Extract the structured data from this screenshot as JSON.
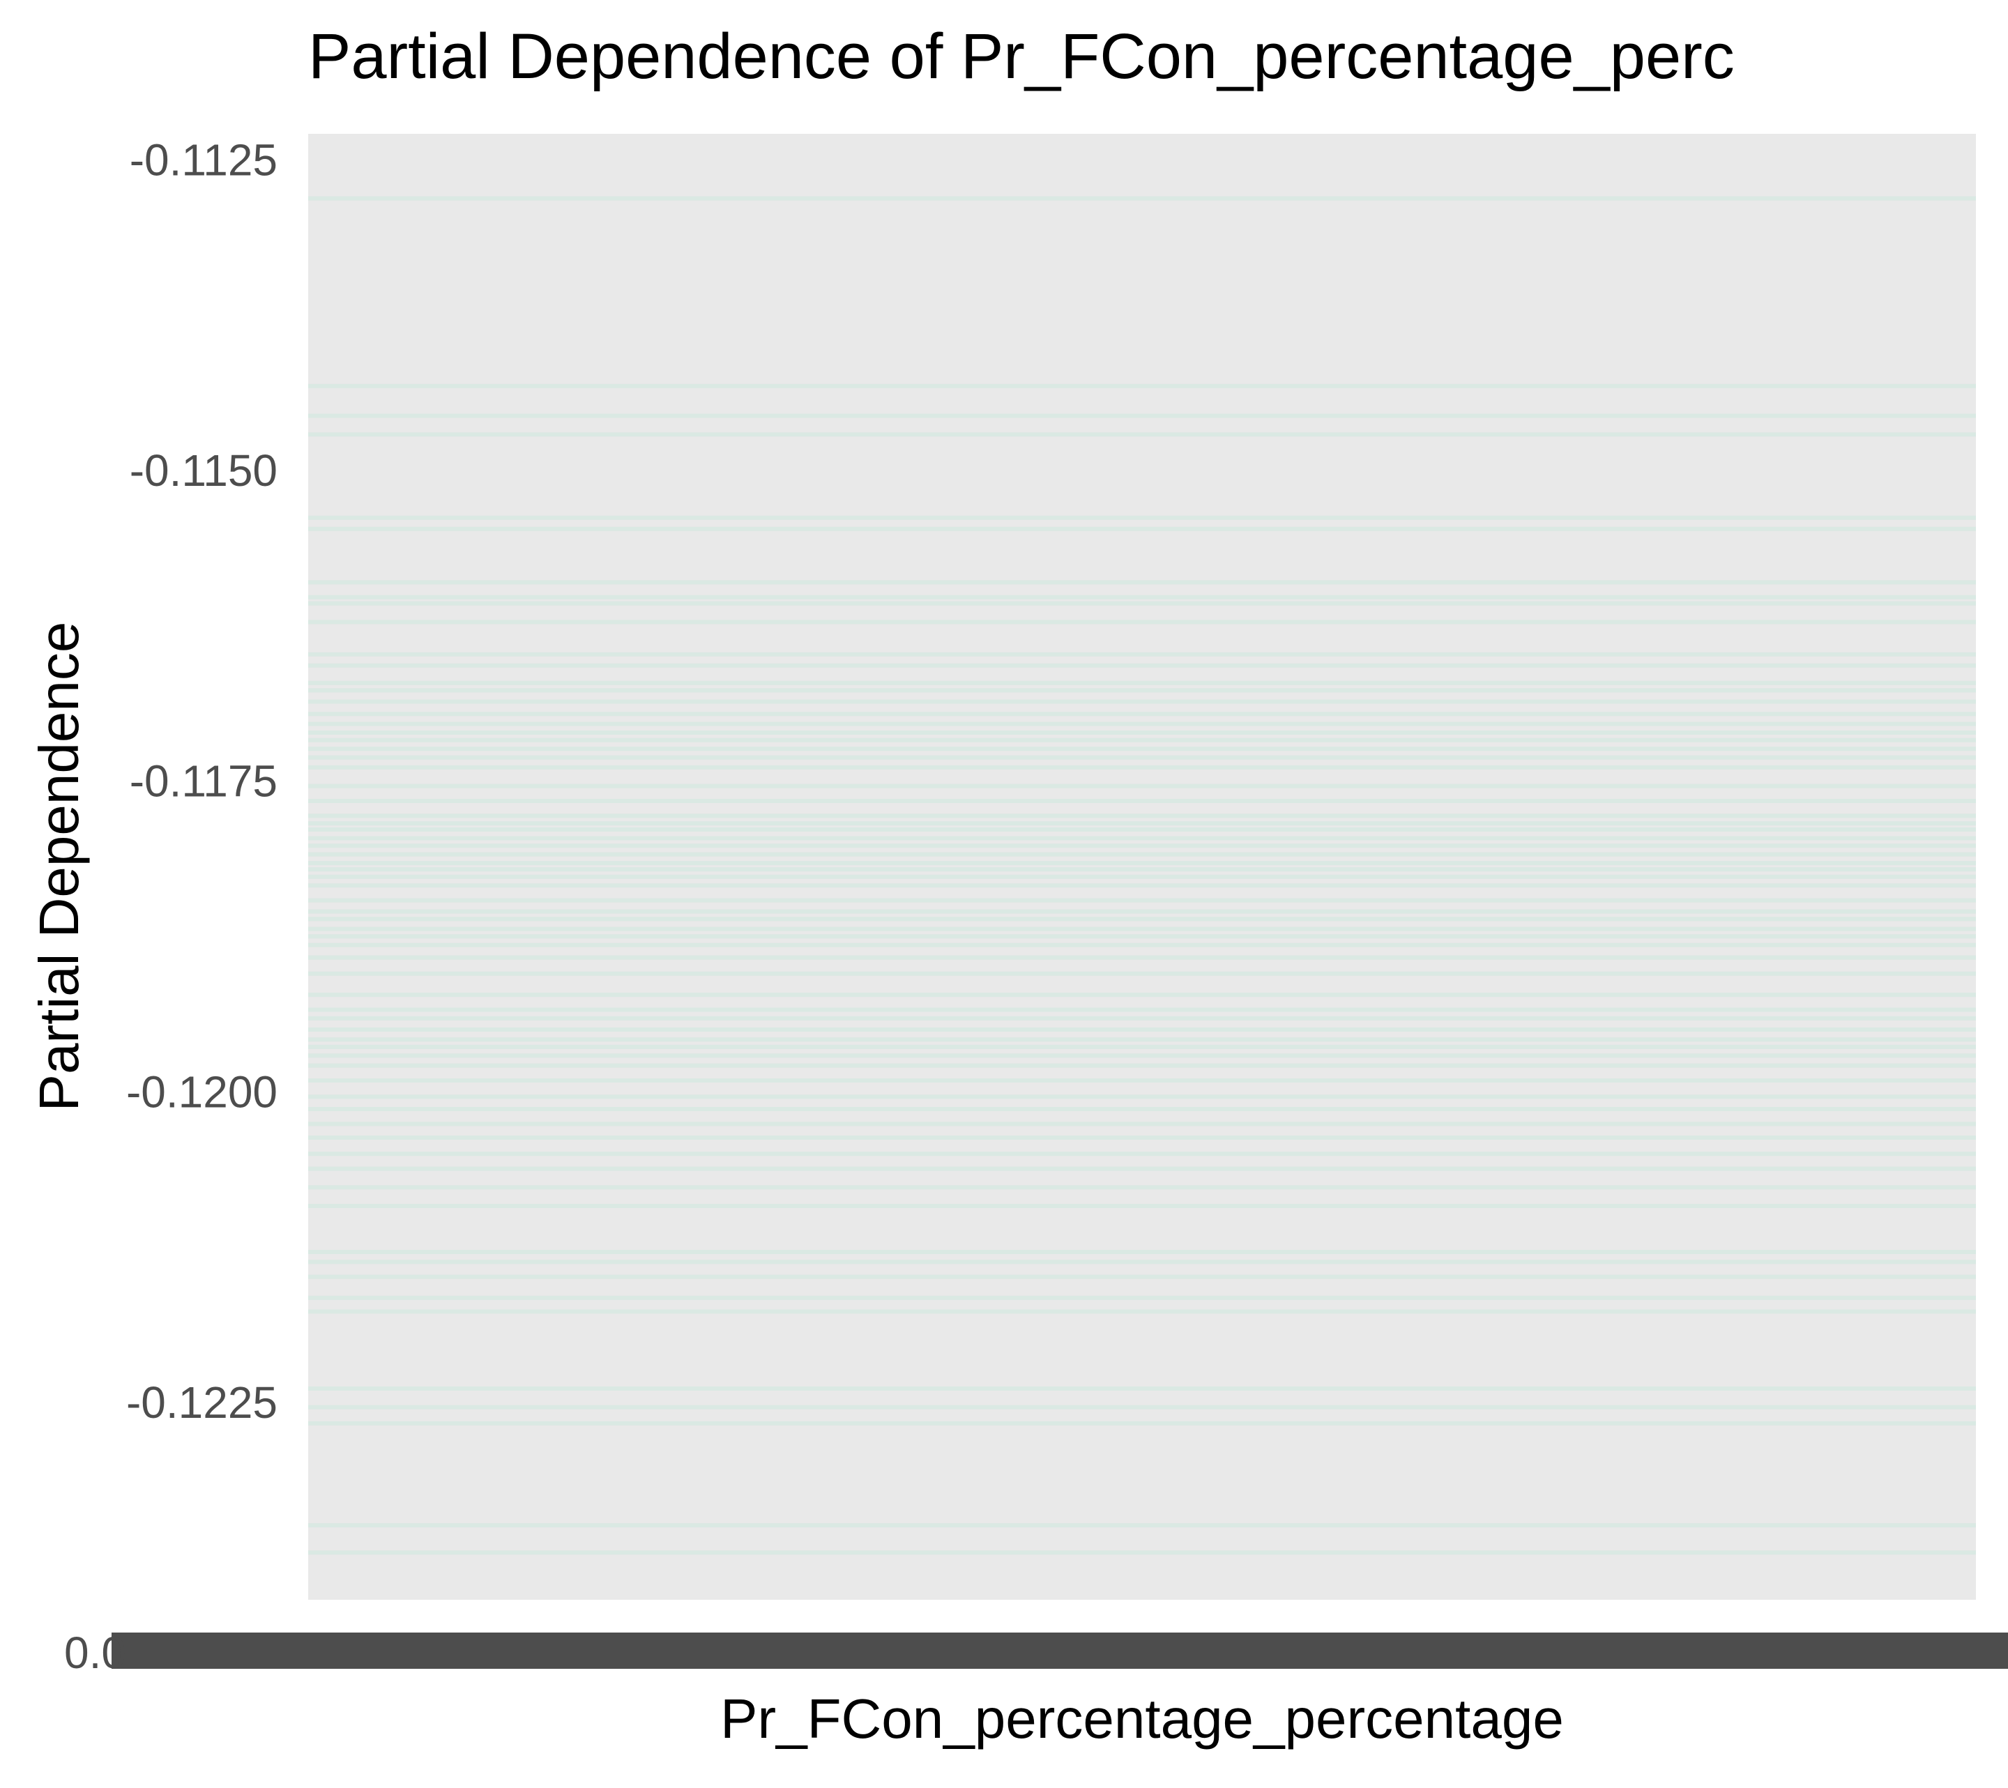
{
  "chart_data": {
    "type": "line",
    "title": "Partial Dependence of Pr_FCon_percentage_perc",
    "xlabel": "Pr_FCon_percentage_percentage",
    "ylabel": "Partial Dependence",
    "ylim": [
      -0.1241,
      -0.1123
    ],
    "y_ticks": [
      -0.1125,
      -0.115,
      -0.1175,
      -0.12,
      -0.1225
    ],
    "y_tick_labels": [
      "-0.1125",
      "-0.1150",
      "-0.1175",
      "-0.1200",
      "-0.1225"
    ],
    "x_tick_first_label": "0.0",
    "x_tick_labels_note": "overplotted",
    "grid": false,
    "colors": {
      "panel_background": "#e9e9e9",
      "line": "#7de8c2",
      "x_ticks": "#4d4d4d",
      "tick_text": "#4d4d4d",
      "title_text": "#000000"
    },
    "series_levels": [
      -0.11282,
      -0.11433,
      -0.11457,
      -0.11472,
      -0.11539,
      -0.11548,
      -0.11591,
      -0.11603,
      -0.11608,
      -0.11623,
      -0.11649,
      -0.11658,
      -0.11672,
      -0.11678,
      -0.11687,
      -0.11697,
      -0.11705,
      -0.11712,
      -0.11718,
      -0.11725,
      -0.11732,
      -0.1174,
      -0.11755,
      -0.11767,
      -0.11779,
      -0.11785,
      -0.1179,
      -0.11797,
      -0.11803,
      -0.1181,
      -0.11817,
      -0.11822,
      -0.11828,
      -0.11835,
      -0.11847,
      -0.11856,
      -0.11862,
      -0.1187,
      -0.11876,
      -0.11883,
      -0.11893,
      -0.11906,
      -0.11923,
      -0.11935,
      -0.11942,
      -0.11951,
      -0.11959,
      -0.11965,
      -0.11972,
      -0.1198,
      -0.11992,
      -0.12005,
      -0.12015,
      -0.12027,
      -0.12038,
      -0.12051,
      -0.12063,
      -0.12078,
      -0.12093,
      -0.1213,
      -0.12138,
      -0.1215,
      -0.12167,
      -0.12178,
      -0.1224,
      -0.12255,
      -0.12268,
      -0.1235,
      -0.12372
    ]
  }
}
